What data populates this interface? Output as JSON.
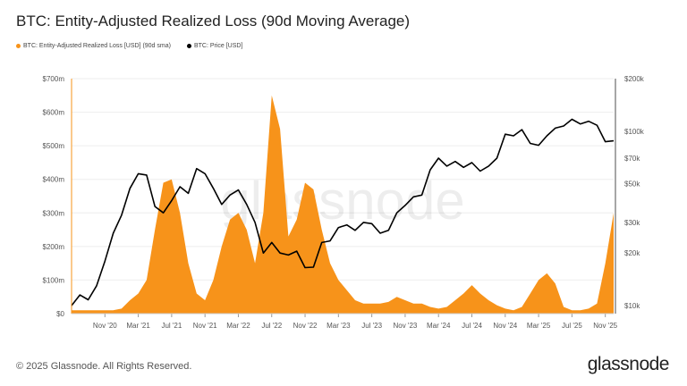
{
  "header": {
    "title": "BTC: Entity-Adjusted Realized Loss (90d Moving Average)"
  },
  "footer": {
    "copyright": "© 2025 Glassnode. All Rights Reserved.",
    "logo": "glassnode"
  },
  "watermark": "glassnode",
  "chart_data": {
    "type": "area",
    "title": "BTC: Entity-Adjusted Realized Loss (90d Moving Average)",
    "x": [
      "2020-07",
      "2020-08",
      "2020-09",
      "2020-10",
      "2020-11",
      "2020-12",
      "2021-01",
      "2021-02",
      "2021-03",
      "2021-04",
      "2021-05",
      "2021-06",
      "2021-07",
      "2021-08",
      "2021-09",
      "2021-10",
      "2021-11",
      "2021-12",
      "2022-01",
      "2022-02",
      "2022-03",
      "2022-04",
      "2022-05",
      "2022-06",
      "2022-07",
      "2022-08",
      "2022-09",
      "2022-10",
      "2022-11",
      "2022-12",
      "2023-01",
      "2023-02",
      "2023-03",
      "2023-04",
      "2023-05",
      "2023-06",
      "2023-07",
      "2023-08",
      "2023-09",
      "2023-10",
      "2023-11",
      "2023-12",
      "2024-01",
      "2024-02",
      "2024-03",
      "2024-04",
      "2024-05",
      "2024-06",
      "2024-07",
      "2024-08",
      "2024-09",
      "2024-10",
      "2024-11",
      "2024-12",
      "2025-01",
      "2025-02",
      "2025-03",
      "2025-04",
      "2025-05",
      "2025-06",
      "2025-07",
      "2025-08",
      "2025-09",
      "2025-10",
      "2025-11",
      "2025-12"
    ],
    "series": [
      {
        "name": "BTC: Entity-Adjusted Realized Loss [USD] (90d sma)",
        "axis": "left",
        "color": "#f7931a",
        "type": "area",
        "values": [
          10,
          10,
          10,
          10,
          10,
          10,
          15,
          40,
          60,
          100,
          250,
          390,
          400,
          300,
          150,
          60,
          40,
          100,
          200,
          280,
          300,
          250,
          150,
          300,
          650,
          550,
          230,
          280,
          390,
          370,
          250,
          150,
          100,
          70,
          40,
          30,
          30,
          30,
          35,
          50,
          40,
          30,
          30,
          20,
          15,
          20,
          40,
          60,
          85,
          60,
          40,
          25,
          15,
          10,
          20,
          60,
          100,
          120,
          90,
          20,
          10,
          10,
          15,
          30,
          150,
          300
        ]
      },
      {
        "name": "BTC: Price [USD]",
        "axis": "right",
        "color": "#000000",
        "type": "line",
        "values": [
          10,
          11.5,
          10.8,
          13,
          18,
          26,
          33,
          47,
          57,
          56,
          37,
          34,
          40,
          48,
          44,
          61,
          57,
          47,
          38,
          43,
          46,
          38,
          30,
          20,
          23,
          20,
          19.5,
          20.5,
          16.5,
          16.6,
          23,
          23.5,
          28,
          29,
          27,
          30,
          29.5,
          26,
          27,
          34,
          37.5,
          42,
          43,
          60,
          70,
          63,
          67,
          62,
          66,
          59,
          63,
          70,
          96,
          94,
          102,
          85,
          83,
          94,
          104,
          107,
          117,
          110,
          114,
          108,
          87,
          88
        ]
      }
    ],
    "x_ticks": [
      "Nov '20",
      "Mar '21",
      "Jul '21",
      "Nov '21",
      "Mar '22",
      "Jul '22",
      "Nov '22",
      "Mar '23",
      "Jul '23",
      "Nov '23",
      "Mar '24",
      "Jul '24",
      "Nov '24",
      "Mar '25",
      "Jul '25",
      "Nov '25"
    ],
    "y_left": {
      "ticks": [
        "$0",
        "$100m",
        "$200m",
        "$300m",
        "$400m",
        "$500m",
        "$600m",
        "$700m"
      ],
      "range": [
        0,
        700
      ],
      "unit": "USD millions"
    },
    "y_right": {
      "scale": "log",
      "ticks": [
        "$10k",
        "$20k",
        "$30k",
        "$50k",
        "$70k",
        "$100k",
        "$200k"
      ],
      "tick_values": [
        10,
        20,
        30,
        50,
        70,
        100,
        200
      ],
      "range": [
        10,
        200
      ],
      "unit": "USD thousands"
    },
    "grid": true,
    "legend_placement": "top-left"
  }
}
